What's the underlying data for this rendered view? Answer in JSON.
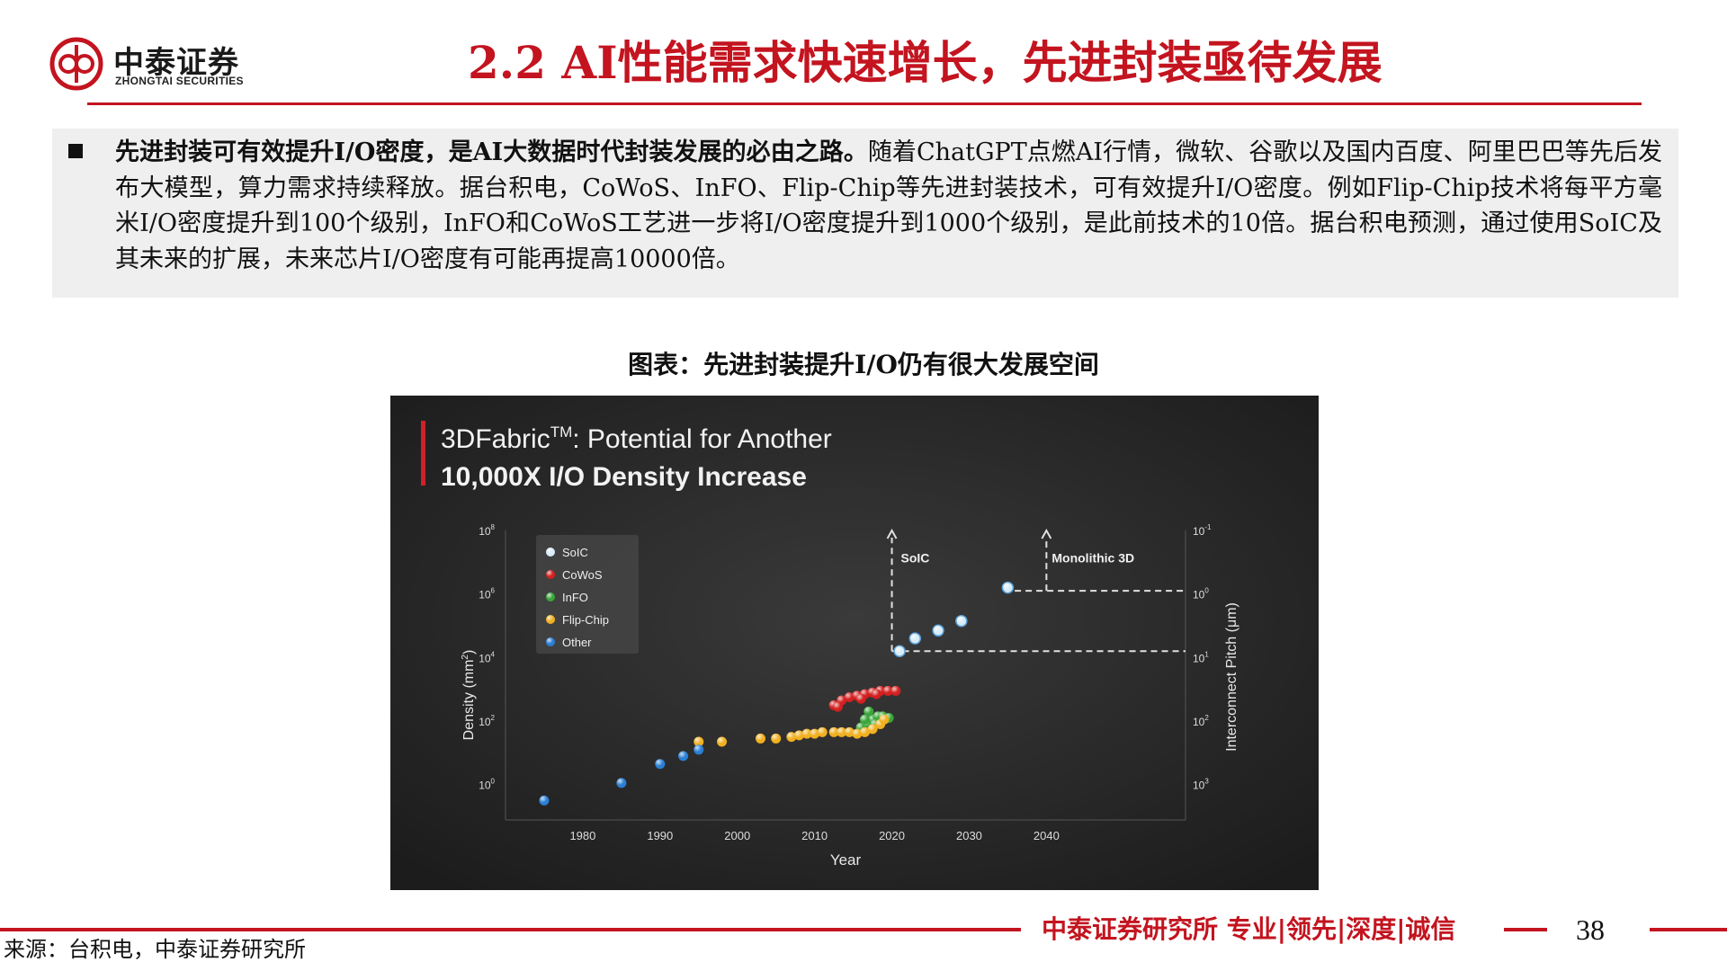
{
  "logo": {
    "cn": "中泰证券",
    "en": "ZHONGTAI SECURITIES"
  },
  "title": "2.2 AI性能需求快速增长，先进封装亟待发展",
  "summary": {
    "bold": "先进封装可有效提升I/O密度，是AI大数据时代封装发展的必由之路。",
    "text": "随着ChatGPT点燃AI行情，微软、谷歌以及国内百度、阿里巴巴等先后发布大模型，算力需求持续释放。据台积电，CoWoS、InFO、Flip-Chip等先进封装技术，可有效提升I/O密度。例如Flip-Chip技术将每平方毫米I/O密度提升到100个级别，InFO和CoWoS工艺进一步将I/O密度提升到1000个级别，是此前技术的10倍。据台积电预测，通过使用SoIC及其未来的扩展，未来芯片I/O密度有可能再提高10000倍。"
  },
  "figure_caption": "图表：先进封装提升I/O仍有很大发展空间",
  "chart_data": {
    "type": "scatter",
    "title_line1": "3DFabric",
    "title_tm": "TM",
    "title_line1_rest": ": Potential for Another",
    "title_line2": "10,000X I/O Density Increase",
    "xlabel": "Year",
    "ylabel": "Density (mm",
    "ylabel_sup": "2",
    "ylabel_end": ")",
    "y2label": "Interconnect Pitch (μm)",
    "xlim": [
      1970,
      2058
    ],
    "ylim_log10": [
      -1,
      8
    ],
    "y_scale": "log",
    "x_ticks": [
      "1980",
      "1990",
      "2000",
      "2010",
      "2020",
      "2030",
      "2040"
    ],
    "y_ticks": [
      {
        "base": "10",
        "exp": "0",
        "v": 0
      },
      {
        "base": "10",
        "exp": "2",
        "v": 2
      },
      {
        "base": "10",
        "exp": "4",
        "v": 4
      },
      {
        "base": "10",
        "exp": "6",
        "v": 6
      },
      {
        "base": "10",
        "exp": "8",
        "v": 8
      }
    ],
    "y2_ticks": [
      {
        "base": "10",
        "exp": "3",
        "v": 0
      },
      {
        "base": "10",
        "exp": "2",
        "v": 2
      },
      {
        "base": "10",
        "exp": "1",
        "v": 4
      },
      {
        "base": "10",
        "exp": "0",
        "v": 6
      },
      {
        "base": "10",
        "exp": "-1",
        "v": 8
      }
    ],
    "legend_position": "top-left",
    "annotations": [
      "SoIC",
      "Monolithic 3D"
    ],
    "annotation_soic": {
      "x": 2020,
      "y_from": 4.2,
      "y_to": 8
    },
    "annotation_mono": {
      "x": 2040,
      "y_from": 6.1,
      "y_to": 8
    },
    "series": [
      {
        "name": "SoIC",
        "color": "#d8ecf8",
        "points": [
          [
            2021,
            4.2
          ],
          [
            2023,
            4.6
          ],
          [
            2026,
            4.85
          ],
          [
            2029,
            5.15
          ],
          [
            2035,
            6.2
          ]
        ]
      },
      {
        "name": "CoWoS",
        "color": "#d32020",
        "points": [
          [
            2012.5,
            2.5
          ],
          [
            2013.5,
            2.65
          ],
          [
            2014.5,
            2.75
          ],
          [
            2015.5,
            2.8
          ],
          [
            2016.5,
            2.85
          ],
          [
            2017.5,
            2.9
          ],
          [
            2018.5,
            2.95
          ],
          [
            2019.5,
            2.95
          ],
          [
            2020.5,
            2.95
          ],
          [
            2013,
            2.45
          ],
          [
            2016,
            2.7
          ],
          [
            2018,
            2.85
          ]
        ]
      },
      {
        "name": "InFO",
        "color": "#3aa63a",
        "points": [
          [
            2016,
            1.8
          ],
          [
            2016.8,
            1.9
          ],
          [
            2017.5,
            2.05
          ],
          [
            2018.2,
            2.15
          ],
          [
            2017,
            2.3
          ],
          [
            2018.8,
            2.15
          ],
          [
            2019.6,
            2.1
          ],
          [
            2016.5,
            2.05
          ],
          [
            2017.8,
            1.9
          ]
        ]
      },
      {
        "name": "Flip-Chip",
        "color": "#f0b020",
        "points": [
          [
            1995,
            1.35
          ],
          [
            1998,
            1.35
          ],
          [
            2003,
            1.45
          ],
          [
            2005,
            1.45
          ],
          [
            2007,
            1.5
          ],
          [
            2008,
            1.55
          ],
          [
            2009,
            1.6
          ],
          [
            2010,
            1.6
          ],
          [
            2011,
            1.65
          ],
          [
            2012.5,
            1.65
          ],
          [
            2013.5,
            1.65
          ],
          [
            2014.5,
            1.65
          ],
          [
            2015.5,
            1.6
          ],
          [
            2016.5,
            1.65
          ],
          [
            2017.5,
            1.75
          ],
          [
            2018.5,
            1.9
          ],
          [
            2019,
            2.05
          ]
        ]
      },
      {
        "name": "Other",
        "color": "#2a7fd4",
        "points": [
          [
            1975,
            -0.5
          ],
          [
            1985,
            0.05
          ],
          [
            1990,
            0.65
          ],
          [
            1993,
            0.9
          ],
          [
            1995,
            1.1
          ]
        ]
      }
    ]
  },
  "footer": {
    "brand": "中泰证券研究所 专业|领先|深度|诚信",
    "page": "38",
    "source": "来源：台积电，中泰证券研究所"
  }
}
